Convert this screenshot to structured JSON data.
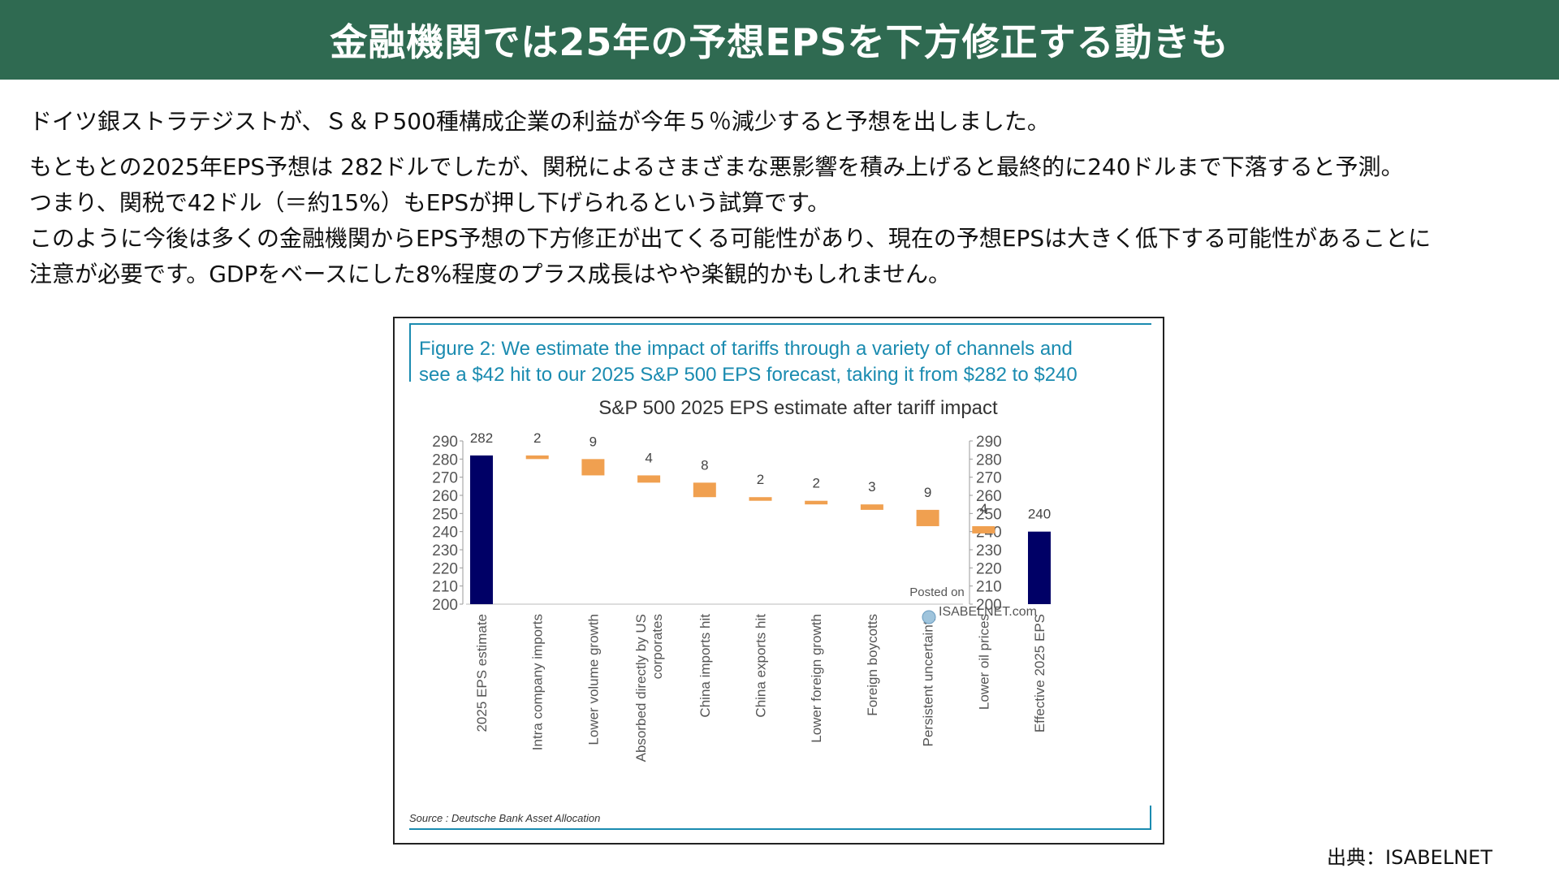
{
  "slide": {
    "title": "金融機関では25年の予想EPSを下方修正する動きも",
    "paragraph1": "ドイツ銀ストラテジストが、Ｓ＆Ｐ500種構成企業の利益が今年５％減少すると予想を出しました。",
    "paragraph2_lines": [
      "もともとの2025年EPS予想は 282ドルでしたが、関税によるさまざまな悪影響を積み上げると最終的に240ドルまで下落すると予測。",
      "つまり、関税で42ドル（＝約15%）もEPSが押し下げられるという試算です。",
      "このように今後は多くの金融機関からEPS予想の下方修正が出てくる可能性があり、現在の予想EPSは大きく低下する可能性があることに",
      "注意が必要です。GDPをベースにした8%程度のプラス成長はやや楽観的かもしれません。"
    ],
    "credit": "出典：ISABELNET"
  },
  "figure": {
    "caption_line1": "Figure 2: We estimate the impact of tariffs through a variety of channels and",
    "caption_line2": "see a $42 hit to our 2025 S&P 500 EPS forecast, taking it from $282 to $240",
    "source": "Source : Deutsche Bank Asset Allocation",
    "watermark_line1": "Posted on",
    "watermark_line2": "ISABELNET.com"
  },
  "chart_data": {
    "type": "bar",
    "subtype": "waterfall",
    "title": "S&P 500 2025 EPS estimate after tariff impact",
    "categories": [
      "2025 EPS estimate",
      "Intra company imports",
      "Lower volume growth",
      "Absorbed directly by US corporates",
      "China imports hit",
      "China exports hit",
      "Lower foreign growth",
      "Foreign boycotts",
      "Persistent uncertainty",
      "Lower oil prices",
      "Effective 2025 EPS"
    ],
    "category_lines": [
      [
        "2025 EPS estimate"
      ],
      [
        "Intra company imports"
      ],
      [
        "Lower volume growth"
      ],
      [
        "Absorbed directly by US",
        "corporates"
      ],
      [
        "China imports hit"
      ],
      [
        "China exports hit"
      ],
      [
        "Lower foreign growth"
      ],
      [
        "Foreign boycotts"
      ],
      [
        "Persistent uncertainty"
      ],
      [
        "Lower oil prices"
      ],
      [
        "Effective 2025 EPS"
      ]
    ],
    "values": [
      282,
      2,
      9,
      4,
      8,
      2,
      2,
      3,
      9,
      4,
      240
    ],
    "bar_kind": [
      "total",
      "decrease",
      "decrease",
      "decrease",
      "decrease",
      "decrease",
      "decrease",
      "decrease",
      "decrease",
      "decrease",
      "total"
    ],
    "data_labels": [
      "282",
      "2",
      "9",
      "4",
      "8",
      "2",
      "2",
      "3",
      "9",
      "4",
      "240"
    ],
    "ylim": [
      200,
      290
    ],
    "yticks": [
      200,
      210,
      220,
      230,
      240,
      250,
      260,
      270,
      280,
      290
    ],
    "secondary_axis": true,
    "grid": false,
    "legend": "none",
    "colors": {
      "total": "#000066",
      "decrease": "#f0a050"
    }
  }
}
